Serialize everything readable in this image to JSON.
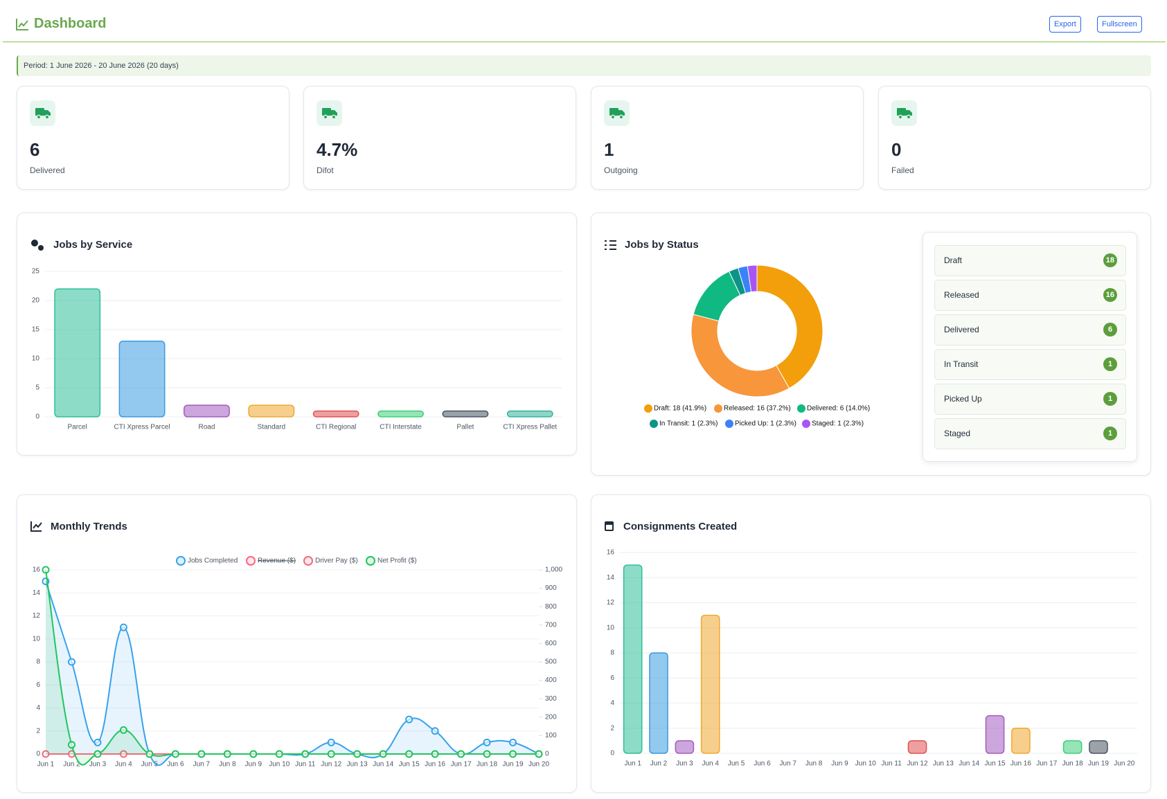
{
  "header": {
    "title": "Dashboard",
    "buttons": [
      "Export",
      "Fullscreen"
    ]
  },
  "period": "Period: 1 June 2026 - 20 June 2026 (20 days)",
  "stats": [
    {
      "value": "6",
      "label": "Delivered"
    },
    {
      "value": "4.7%",
      "label": "Difot"
    },
    {
      "value": "1",
      "label": "Outgoing"
    },
    {
      "value": "0",
      "label": "Failed"
    }
  ],
  "chart_data": [
    {
      "type": "bar",
      "title": "Jobs by Service",
      "categories": [
        "Parcel",
        "CTI Xpress Parcel",
        "Road",
        "Standard",
        "CTI Regional",
        "CTI Interstate",
        "Pallet",
        "CTI Xpress Pallet"
      ],
      "values": [
        22,
        13,
        2,
        2,
        1,
        1,
        1,
        1
      ],
      "colors": [
        "#2fbf9a",
        "#3b9ae1",
        "#a35dbf",
        "#f0a830",
        "#e05252",
        "#3ecf7a",
        "#4b5563",
        "#33b39b"
      ],
      "ylim": [
        0,
        25
      ],
      "yticks": [
        0,
        5,
        10,
        15,
        20,
        25
      ],
      "grid": true
    },
    {
      "type": "doughnut",
      "title": "Jobs by Status",
      "categories": [
        "Draft",
        "Released",
        "Delivered",
        "In Transit",
        "Picked Up",
        "Staged"
      ],
      "values": [
        18,
        16,
        6,
        1,
        1,
        1
      ],
      "legend_labels": [
        "Draft: 18 (41.9%)",
        "Released: 16 (37.2%)",
        "Delivered: 6 (14.0%)",
        "In Transit: 1 (2.3%)",
        "Picked Up: 1 (2.3%)",
        "Staged: 1 (2.3%)"
      ],
      "colors": [
        "#f29f0b",
        "#f7963b",
        "#10b981",
        "#0d9488",
        "#3b82f6",
        "#a855f7"
      ]
    },
    {
      "type": "line",
      "title": "Monthly Trends",
      "x": [
        "Jun 1",
        "Jun 2",
        "Jun 3",
        "Jun 4",
        "Jun 5",
        "Jun 6",
        "Jun 7",
        "Jun 8",
        "Jun 9",
        "Jun 10",
        "Jun 11",
        "Jun 12",
        "Jun 13",
        "Jun 14",
        "Jun 15",
        "Jun 16",
        "Jun 17",
        "Jun 18",
        "Jun 19",
        "Jun 20"
      ],
      "series": [
        {
          "name": "Jobs Completed",
          "color": "#36a2eb",
          "fill": true,
          "values": [
            15,
            8,
            1,
            11,
            0,
            0,
            0,
            0,
            0,
            0,
            0,
            1,
            0,
            0,
            3,
            2,
            0,
            1,
            1,
            0
          ]
        },
        {
          "name": "Revenue ($)",
          "color": "#ff6384",
          "hidden": true,
          "axis": "y2",
          "values": [
            null,
            null,
            null,
            null,
            null,
            null,
            null,
            null,
            null,
            null,
            null,
            null,
            null,
            null,
            null,
            null,
            null,
            null,
            null,
            null
          ]
        },
        {
          "name": "Driver Pay ($)",
          "color": "#f06b7d",
          "axis": "y2",
          "values": [
            0,
            0,
            0,
            0,
            0,
            0,
            0,
            0,
            0,
            0,
            0,
            0,
            0,
            0,
            0,
            0,
            0,
            0,
            0,
            0
          ]
        },
        {
          "name": "Net Profit ($)",
          "color": "#22c55e",
          "fill": true,
          "axis": "y2",
          "values": [
            1000,
            50,
            0,
            130,
            0,
            0,
            0,
            0,
            0,
            0,
            0,
            0,
            0,
            0,
            0,
            0,
            0,
            0,
            0,
            0
          ]
        }
      ],
      "ylim": [
        0,
        16
      ],
      "yticks": [
        0,
        2,
        4,
        6,
        8,
        10,
        12,
        14,
        16
      ],
      "y2lim": [
        0,
        1000
      ],
      "y2ticks": [
        0,
        100,
        200,
        300,
        400,
        500,
        600,
        700,
        800,
        900,
        {
          "value": 1000,
          "label": "1,000"
        }
      ],
      "grid": true
    },
    {
      "type": "bar",
      "title": "Consignments Created",
      "categories": [
        "Jun 1",
        "Jun 2",
        "Jun 3",
        "Jun 4",
        "Jun 5",
        "Jun 6",
        "Jun 7",
        "Jun 8",
        "Jun 9",
        "Jun 10",
        "Jun 11",
        "Jun 12",
        "Jun 13",
        "Jun 14",
        "Jun 15",
        "Jun 16",
        "Jun 17",
        "Jun 18",
        "Jun 19",
        "Jun 20"
      ],
      "values": [
        15,
        8,
        1,
        11,
        0,
        0,
        0,
        0,
        0,
        0,
        0,
        1,
        0,
        0,
        3,
        2,
        0,
        1,
        1,
        0
      ],
      "colors": [
        "#2fbf9a",
        "#3b9ae1",
        "#a35dbf",
        "#f0a830",
        "#e05252",
        "#3ecf7a",
        "#4b5563",
        "#33b39b",
        "#2fbf9a",
        "#3b9ae1",
        "#a35dbf",
        "#e05252",
        "#3ecf7a",
        "#4b5563",
        "#a35dbf",
        "#f0a830",
        "#e05252",
        "#3ecf7a",
        "#4b5563",
        "#33b39b"
      ],
      "ylim": [
        0,
        16
      ],
      "yticks": [
        0,
        2,
        4,
        6,
        8,
        10,
        12,
        14,
        16
      ],
      "grid": true
    }
  ]
}
